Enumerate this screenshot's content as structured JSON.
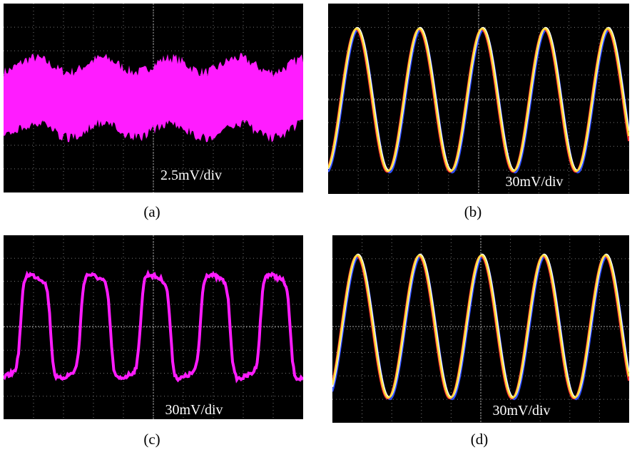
{
  "panels": [
    {
      "scale": "2.5mV/div",
      "caption": "(a)"
    },
    {
      "scale": "30mV/div",
      "caption": "(b)"
    },
    {
      "scale": "30mV/div",
      "caption": "(c)"
    },
    {
      "scale": "30mV/div",
      "caption": "(d)"
    }
  ]
}
